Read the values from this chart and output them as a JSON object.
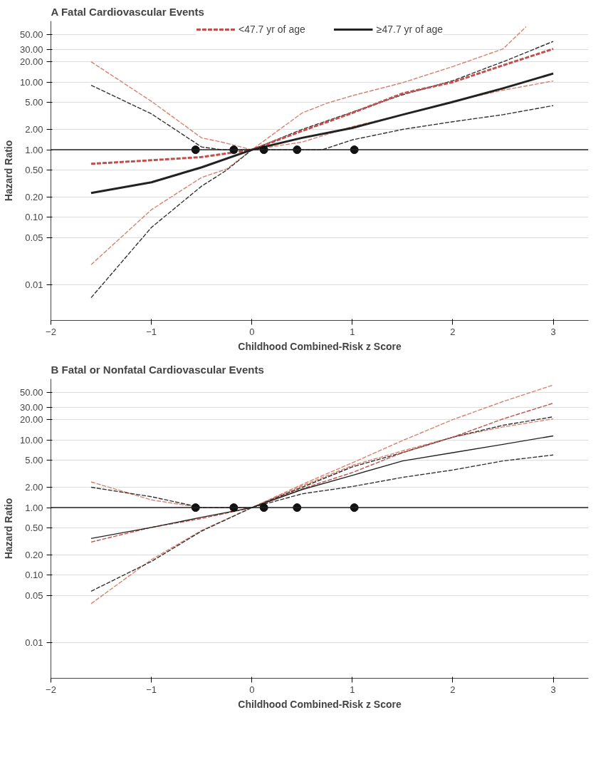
{
  "chart_data": [
    {
      "type": "line",
      "title": "A  Fatal Cardiovascular Events",
      "xlabel": "Childhood Combined-Risk z Score",
      "ylabel": "Hazard Ratio",
      "log": "y",
      "grid": "y",
      "legend": "top",
      "xlim": [
        -2,
        3.35
      ],
      "ylim": [
        0.003,
        80
      ],
      "xticks": [
        -2,
        -1,
        0,
        1,
        2,
        3
      ],
      "yticks": [
        {
          "value": 0.01,
          "label": "0.01"
        },
        {
          "value": 0.05,
          "label": "0.05"
        },
        {
          "value": 0.1,
          "label": "0.10"
        },
        {
          "value": 0.2,
          "label": "0.20"
        },
        {
          "value": 0.5,
          "label": "0.50"
        },
        {
          "value": 1,
          "label": "1.00"
        },
        {
          "value": 2,
          "label": "2.00"
        },
        {
          "value": 5,
          "label": "5.00"
        },
        {
          "value": 10,
          "label": "10.00"
        },
        {
          "value": 20,
          "label": "20.00"
        },
        {
          "value": 30,
          "label": "30.00"
        },
        {
          "value": 50,
          "label": "50.00"
        }
      ],
      "ref_lines": [
        {
          "axis": "y",
          "value": 1,
          "color": "#222222"
        }
      ],
      "series": [
        {
          "color": "#d9826b",
          "line_style": "dashed",
          "x": [
            -1.6,
            -1,
            -0.5,
            -0.3,
            0,
            0.5,
            0.75,
            1,
            1.5,
            2,
            2.5,
            2.73
          ],
          "values": [
            20,
            5.2,
            1.5,
            1.3,
            1,
            3.5,
            4.9,
            6.3,
            9.8,
            17,
            31,
            66
          ]
        },
        {
          "color": "#d9826b",
          "line_style": "dashed",
          "x": [
            -1.6,
            -1,
            -0.5,
            -0.25,
            0,
            0.5,
            1,
            1.5,
            2,
            2.5,
            3
          ],
          "values": [
            0.02,
            0.13,
            0.39,
            0.52,
            1,
            1.3,
            2.2,
            3.3,
            5.2,
            7.6,
            10.4
          ]
        },
        {
          "color": "#333333",
          "line_style": "dashed",
          "x": [
            -1.6,
            -1,
            -0.5,
            -0.3,
            0,
            0.5,
            1,
            1.5,
            2,
            2.5,
            3
          ],
          "values": [
            9,
            3.4,
            1.1,
            1,
            1,
            2,
            3.6,
            6.5,
            10.5,
            20,
            40
          ]
        },
        {
          "color": "#333333",
          "line_style": "dashed",
          "x": [
            -1.6,
            -1,
            -0.5,
            -0.25,
            0,
            0.3,
            0.7,
            1,
            1.5,
            2,
            2.5,
            3
          ],
          "values": [
            0.0065,
            0.071,
            0.29,
            0.5,
            1,
            1,
            1,
            1.4,
            2,
            2.6,
            3.3,
            4.5
          ]
        },
        {
          "name": "<47.7 yr of age",
          "color": "#c0504d",
          "line_style": "dashed",
          "x": [
            -1.6,
            -1,
            -0.5,
            0,
            0.5,
            1,
            1.5,
            2,
            2.5,
            3
          ],
          "values": [
            0.62,
            0.7,
            0.78,
            1,
            1.9,
            3.5,
            6.8,
            10,
            17.7,
            31
          ]
        },
        {
          "name": "≥47.7 yr of age",
          "color": "#222222",
          "line_style": "solid",
          "x": [
            -1.6,
            -1,
            -0.5,
            0,
            0.5,
            1,
            1.5,
            2,
            2.5,
            3
          ],
          "values": [
            0.23,
            0.33,
            0.55,
            1,
            1.5,
            2.1,
            3.3,
            5.1,
            8.1,
            13.4
          ]
        },
        {
          "type": "scatter",
          "marker": "circle",
          "color": "#111111",
          "x": [
            -0.56,
            -0.18,
            0.12,
            0.45,
            1.02
          ],
          "values": [
            1,
            1,
            1,
            1,
            1
          ]
        }
      ]
    },
    {
      "type": "line",
      "title": "B  Fatal or Nonfatal Cardiovascular Events",
      "xlabel": "Childhood Combined-Risk z Score",
      "ylabel": "Hazard Ratio",
      "log": "y",
      "grid": "y",
      "xlim": [
        -2,
        3.35
      ],
      "ylim": [
        0.003,
        80
      ],
      "xticks": [
        -2,
        -1,
        0,
        1,
        2,
        3
      ],
      "yticks": [
        {
          "value": 0.01,
          "label": "0.01"
        },
        {
          "value": 0.05,
          "label": "0.05"
        },
        {
          "value": 0.1,
          "label": "0.10"
        },
        {
          "value": 0.2,
          "label": "0.20"
        },
        {
          "value": 0.5,
          "label": "0.50"
        },
        {
          "value": 1,
          "label": "1.00"
        },
        {
          "value": 2,
          "label": "2.00"
        },
        {
          "value": 5,
          "label": "5.00"
        },
        {
          "value": 10,
          "label": "10.00"
        },
        {
          "value": 20,
          "label": "20.00"
        },
        {
          "value": 30,
          "label": "30.00"
        },
        {
          "value": 50,
          "label": "50.00"
        }
      ],
      "ref_lines": [
        {
          "axis": "y",
          "value": 1,
          "color": "#222222"
        }
      ],
      "series": [
        {
          "color": "#d9826b",
          "line_style": "dashed",
          "x": [
            -1.6,
            -1,
            -0.5,
            -0.3,
            0,
            0.5,
            1,
            1.5,
            2,
            2.5,
            3
          ],
          "values": [
            2.4,
            1.3,
            1,
            1,
            1,
            2.2,
            4.6,
            9.8,
            20,
            37,
            65
          ]
        },
        {
          "color": "#d9826b",
          "line_style": "dashed",
          "x": [
            -1.6,
            -1,
            -0.5,
            0,
            0.5,
            1,
            1.5,
            2,
            2.5,
            3
          ],
          "values": [
            0.038,
            0.17,
            0.46,
            1,
            2.1,
            4.2,
            6.9,
            11,
            15.6,
            20.5
          ]
        },
        {
          "color": "#333333",
          "line_style": "dashed",
          "x": [
            -1.6,
            -1,
            -0.5,
            0,
            0.5,
            1,
            1.5,
            2,
            2.5,
            3
          ],
          "values": [
            2,
            1.45,
            1,
            1,
            2,
            4,
            6.5,
            11,
            16.5,
            22
          ]
        },
        {
          "color": "#333333",
          "line_style": "dashed",
          "x": [
            -1.6,
            -1,
            -0.5,
            0,
            0.5,
            1,
            1.5,
            2,
            2.5,
            3
          ],
          "values": [
            0.058,
            0.16,
            0.45,
            1,
            1.6,
            2.05,
            2.8,
            3.6,
            4.9,
            6
          ]
        },
        {
          "color": "#c0504d",
          "line_style": "dashed",
          "x": [
            -1.6,
            -1,
            -0.5,
            0,
            0.5,
            1,
            1.5,
            2,
            2.5,
            3
          ],
          "values": [
            0.31,
            0.51,
            0.69,
            1,
            1.9,
            3.3,
            6.5,
            11,
            20.5,
            35
          ]
        },
        {
          "color": "#222222",
          "line_style": "solid",
          "x": [
            -1.6,
            -1,
            -0.5,
            0,
            0.5,
            1,
            1.5,
            2,
            2.5,
            3
          ],
          "values": [
            0.35,
            0.51,
            0.72,
            1,
            1.85,
            3,
            4.9,
            6.5,
            8.6,
            11.5
          ]
        },
        {
          "type": "scatter",
          "marker": "circle",
          "color": "#111111",
          "x": [
            -0.56,
            -0.18,
            0.12,
            0.45,
            1.02
          ],
          "values": [
            1,
            1,
            1,
            1,
            1
          ]
        }
      ]
    }
  ]
}
